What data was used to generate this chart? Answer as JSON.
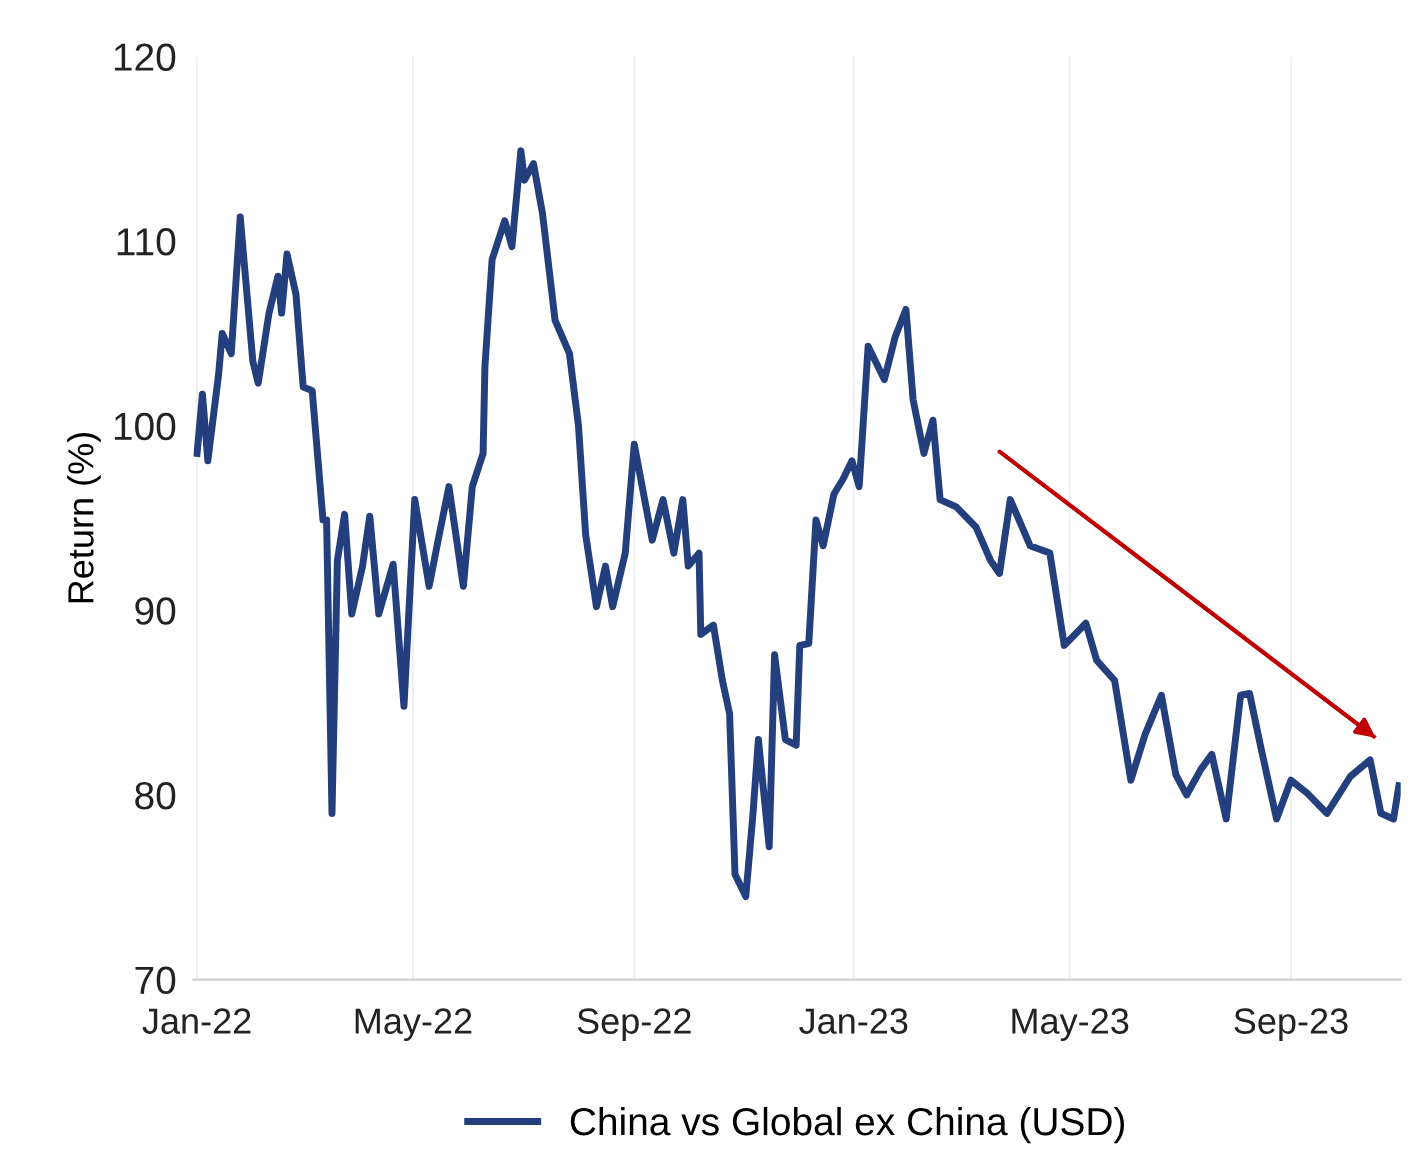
{
  "chart_data": {
    "type": "line",
    "ylabel": "Return (%)",
    "xlim": [
      "2021-12-30",
      "2023-11-01"
    ],
    "xticks": [
      {
        "value": "2022-01-01",
        "label": "Jan-22"
      },
      {
        "value": "2022-05-01",
        "label": "May-22"
      },
      {
        "value": "2022-09-01",
        "label": "Sep-22"
      },
      {
        "value": "2023-01-01",
        "label": "Jan-23"
      },
      {
        "value": "2023-05-01",
        "label": "May-23"
      },
      {
        "value": "2023-09-01",
        "label": "Sep-23"
      }
    ],
    "ylim": [
      70,
      120
    ],
    "yticks": [
      70,
      80,
      90,
      100,
      110,
      120
    ],
    "grid": "x",
    "legend": "bottom",
    "series": [
      {
        "name": "China vs Global ex China (USD)",
        "color": "#233f7e",
        "x": [
          "2022-01-01",
          "2022-01-04",
          "2022-01-07",
          "2022-01-13",
          "2022-01-15",
          "2022-01-20",
          "2022-01-25",
          "2022-02-01",
          "2022-02-04",
          "2022-02-10",
          "2022-02-15",
          "2022-02-17",
          "2022-02-20",
          "2022-02-25",
          "2022-03-01",
          "2022-03-06",
          "2022-03-12",
          "2022-03-14",
          "2022-03-17",
          "2022-03-20",
          "2022-03-24",
          "2022-03-28",
          "2022-04-03",
          "2022-04-07",
          "2022-04-12",
          "2022-04-20",
          "2022-04-26",
          "2022-05-02",
          "2022-05-10",
          "2022-05-15",
          "2022-05-21",
          "2022-05-29",
          "2022-06-03",
          "2022-06-09",
          "2022-06-10",
          "2022-06-14",
          "2022-06-21",
          "2022-06-25",
          "2022-06-30",
          "2022-07-02",
          "2022-07-07",
          "2022-07-12",
          "2022-07-16",
          "2022-07-19",
          "2022-07-27",
          "2022-08-01",
          "2022-08-05",
          "2022-08-11",
          "2022-08-16",
          "2022-08-20",
          "2022-08-27",
          "2022-09-01",
          "2022-09-11",
          "2022-09-17",
          "2022-09-23",
          "2022-09-28",
          "2022-10-01",
          "2022-10-07",
          "2022-10-08",
          "2022-10-15",
          "2022-10-20",
          "2022-10-24",
          "2022-10-27",
          "2022-11-02",
          "2022-11-06",
          "2022-11-09",
          "2022-11-15",
          "2022-11-18",
          "2022-11-24",
          "2022-11-30",
          "2022-12-02",
          "2022-12-07",
          "2022-12-11",
          "2022-12-15",
          "2022-12-21",
          "2022-12-26",
          "2022-12-31",
          "2023-01-04",
          "2023-01-09",
          "2023-01-18",
          "2023-01-24",
          "2023-01-30",
          "2023-02-03",
          "2023-02-09",
          "2023-02-14",
          "2023-02-18",
          "2023-02-27",
          "2023-03-10",
          "2023-03-18",
          "2023-03-23",
          "2023-03-29",
          "2023-04-09",
          "2023-04-20",
          "2023-04-28",
          "2023-05-10",
          "2023-05-16",
          "2023-05-26",
          "2023-06-04",
          "2023-06-12",
          "2023-06-21",
          "2023-06-29",
          "2023-07-05",
          "2023-07-13",
          "2023-07-19",
          "2023-07-27",
          "2023-08-04",
          "2023-08-09",
          "2023-08-15",
          "2023-08-24",
          "2023-09-01",
          "2023-09-10",
          "2023-09-21",
          "2023-10-04",
          "2023-10-15",
          "2023-10-21",
          "2023-10-28",
          "2023-10-31"
        ],
        "values": [
          98.5,
          101.7,
          98.1,
          102.8,
          105.0,
          103.9,
          111.3,
          103.5,
          102.3,
          106.1,
          108.1,
          106.1,
          109.3,
          107.1,
          102.1,
          101.9,
          94.9,
          94.9,
          79.0,
          92.7,
          95.2,
          89.8,
          92.4,
          95.1,
          89.8,
          92.5,
          84.8,
          96.0,
          91.3,
          93.8,
          96.7,
          91.3,
          96.7,
          98.5,
          103.2,
          109.0,
          111.1,
          109.7,
          114.9,
          113.3,
          114.2,
          111.5,
          108.2,
          105.7,
          103.9,
          100.0,
          94.1,
          90.2,
          92.4,
          90.2,
          93.1,
          99.0,
          93.8,
          96.0,
          93.1,
          96.0,
          92.4,
          93.1,
          88.7,
          89.2,
          86.2,
          84.4,
          75.7,
          74.5,
          79.0,
          83.0,
          77.2,
          87.6,
          83.0,
          82.7,
          88.1,
          88.2,
          94.9,
          93.5,
          96.3,
          97.1,
          98.1,
          96.7,
          104.3,
          102.5,
          104.8,
          106.3,
          101.4,
          98.5,
          100.3,
          96.0,
          95.6,
          94.5,
          92.7,
          92.0,
          96.0,
          93.5,
          93.1,
          88.1,
          89.3,
          87.3,
          86.2,
          80.8,
          83.3,
          85.4,
          81.1,
          80.0,
          81.4,
          82.2,
          78.7,
          85.4,
          85.5,
          82.7,
          78.7,
          80.8,
          80.1,
          79.0,
          81.0,
          81.9,
          79.0,
          78.7,
          80.5
        ]
      },
      {
        "type": "line",
        "color": "#c00000",
        "x": [
          "2023-03-23",
          "2023-10-18"
        ],
        "values": [
          98.6,
          83.1
        ]
      }
    ]
  }
}
